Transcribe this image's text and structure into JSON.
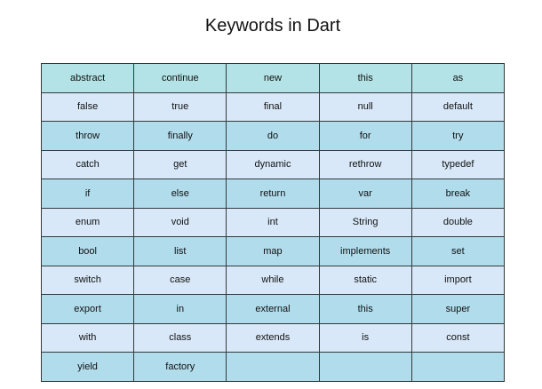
{
  "title": "Keywords in Dart",
  "rows": [
    [
      "abstract",
      "continue",
      "new",
      "this",
      "as"
    ],
    [
      "false",
      "true",
      "final",
      "null",
      "default"
    ],
    [
      "throw",
      "finally",
      "do",
      "for",
      "try"
    ],
    [
      "catch",
      "get",
      "dynamic",
      "rethrow",
      "typedef"
    ],
    [
      "if",
      "else",
      "return",
      "var",
      "break"
    ],
    [
      "enum",
      "void",
      "int",
      "String",
      "double"
    ],
    [
      "bool",
      "list",
      "map",
      "implements",
      "set"
    ],
    [
      "switch",
      "case",
      "while",
      "static",
      "import"
    ],
    [
      "export",
      "in",
      "external",
      "this",
      "super"
    ],
    [
      "with",
      "class",
      "extends",
      "is",
      "const"
    ],
    [
      "yield",
      "factory",
      "",
      "",
      ""
    ]
  ],
  "colors": {
    "header_row": "#b3e3e6",
    "odd_row": "#b0dcec",
    "even_row": "#d8e8f8",
    "border": "#333a3c"
  }
}
